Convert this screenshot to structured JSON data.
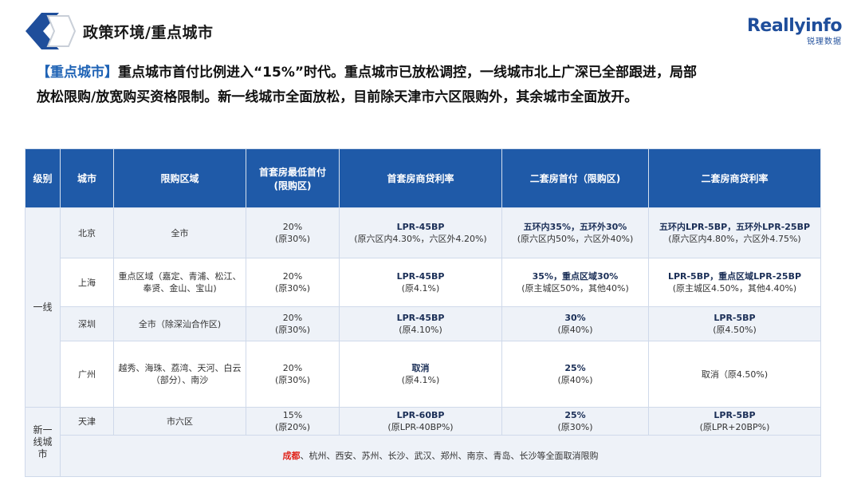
{
  "header": {
    "title_prefix": "政策环境/",
    "title_highlight": "重点城市",
    "brand_name": "Reallyinfo",
    "brand_sub": "锐理数据"
  },
  "intro": {
    "tag": "【重点城市】",
    "line1": "重点城市首付比例进入“15%”时代。重点城市已放松调控，一线城市北上广深已全部跟进，局部",
    "line2": "放松限购/放宽购买资格限制。新一线城市全面放松，目前除天津市六区限购外，其余城市全面放开。"
  },
  "table": {
    "headers": {
      "level": "级别",
      "city": "城市",
      "area": "限购区域",
      "first_down_1": "首套房最低首付",
      "first_down_2": "(限购区)",
      "first_rate": "首套房商贷利率",
      "second_down": "二套房首付（限购区)",
      "second_rate": "二套房商贷利率"
    },
    "level_tier1": "一线",
    "level_newtier1": "新一线城市",
    "rows": [
      {
        "city": "北京",
        "area": "全市",
        "down1": "20%",
        "down2": "(原30%)",
        "rate1": "LPR-45BP",
        "rate2": "(原六区内4.30%，六区外4.20%)",
        "sdown1": "五环内35%，五环外30%",
        "sdown2": "(原六区内50%，六区外40%)",
        "srate1": "五环内LPR-5BP，五环外LPR-25BP",
        "srate2": "(原六区内4.80%，六区外4.75%)"
      },
      {
        "city": "上海",
        "area": "重点区域（嘉定、青浦、松江、奉贤、金山、宝山)",
        "down1": "20%",
        "down2": "(原30%)",
        "rate1": "LPR-45BP",
        "rate2": "(原4.1%)",
        "sdown1": "35%，重点区域30%",
        "sdown2": "(原主城区50%，其他40%)",
        "srate1": "LPR-5BP，重点区域LPR-25BP",
        "srate2": "(原主城区4.50%，其他4.40%)"
      },
      {
        "city": "深圳",
        "area": "全市（除深汕合作区)",
        "down1": "20%",
        "down2": "(原30%)",
        "rate1": "LPR-45BP",
        "rate2": "(原4.10%)",
        "sdown1": "30%",
        "sdown2": "(原40%)",
        "srate1": "LPR-5BP",
        "srate2": "(原4.50%)"
      },
      {
        "city": "广州",
        "area": "越秀、海珠、荔湾、天河、白云（部分）、南沙",
        "down1": "20%",
        "down2": "(原30%)",
        "rate1": "取消",
        "rate2": "(原4.1%)",
        "sdown1": "25%",
        "sdown2": "(原40%)",
        "srate1": "取消（原4.50%)",
        "srate2": ""
      },
      {
        "city": "天津",
        "area": "市六区",
        "down1": "15%",
        "down2": "(原20%)",
        "rate1": "LPR-60BP",
        "rate2": "(原LPR-40BP%)",
        "sdown1": "25%",
        "sdown2": "(原30%)",
        "srate1": "LPR-5BP",
        "srate2": "(原LPR+20BP%)"
      }
    ],
    "note_red": "成都",
    "note_rest": "、杭州、西安、苏州、长沙、武汉、郑州、南京、青岛、长沙等全面取消限购"
  }
}
